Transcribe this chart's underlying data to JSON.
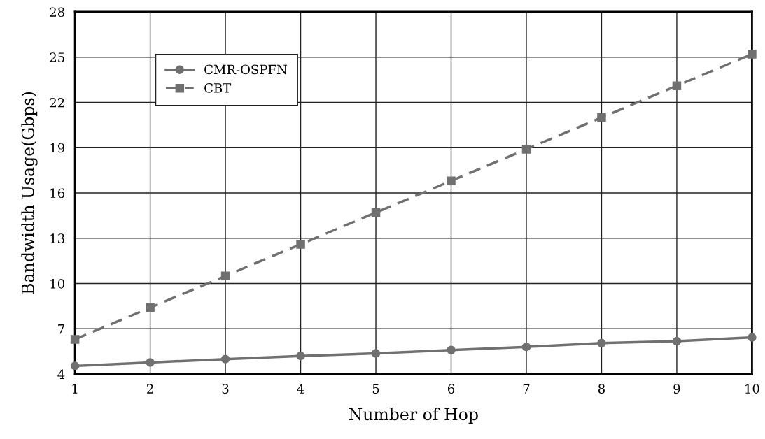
{
  "chart_data": {
    "type": "line",
    "xlabel": "Number of Hop",
    "ylabel": "Bandwidth Usage(Gbps)",
    "x": [
      1,
      2,
      3,
      4,
      5,
      6,
      7,
      8,
      9,
      10
    ],
    "series": [
      {
        "name": "CMR-OSPFN",
        "color": "#707070",
        "marker": "circle",
        "line_style": "solid",
        "values": [
          4.54,
          4.77,
          4.99,
          5.2,
          5.37,
          5.59,
          5.8,
          6.05,
          6.18,
          6.43
        ]
      },
      {
        "name": "CBT",
        "color": "#707070",
        "marker": "square",
        "line_style": "dashed",
        "values": [
          6.3,
          8.4,
          10.5,
          12.6,
          14.7,
          16.8,
          18.9,
          21.0,
          23.1,
          25.2
        ]
      }
    ],
    "xlim": [
      1,
      10
    ],
    "xticks": [
      1,
      2,
      3,
      4,
      5,
      6,
      7,
      8,
      9,
      10
    ],
    "ylim": [
      4,
      28
    ],
    "yticks": [
      4,
      7,
      10,
      13,
      16,
      19,
      22,
      25,
      28
    ],
    "grid": true,
    "legend": "top left"
  }
}
